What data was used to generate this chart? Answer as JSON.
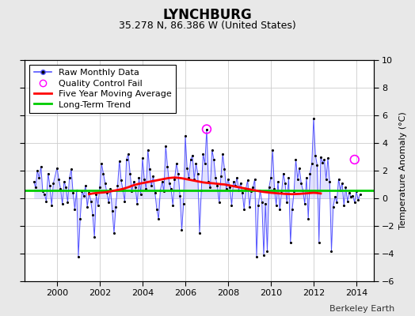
{
  "title": "LYNCHBURG",
  "subtitle": "35.278 N, 86.386 W (United States)",
  "ylabel": "Temperature Anomaly (°C)",
  "watermark": "Berkeley Earth",
  "ylim": [
    -6,
    10
  ],
  "xlim": [
    1998.5,
    2014.8
  ],
  "xticks": [
    2000,
    2002,
    2004,
    2006,
    2008,
    2010,
    2012,
    2014
  ],
  "yticks": [
    -6,
    -4,
    -2,
    0,
    2,
    4,
    6,
    8,
    10
  ],
  "line_color": "#5555ff",
  "marker_color": "#000000",
  "fill_color": "#aaaaff",
  "moving_avg_color": "#ff0000",
  "trend_color": "#00cc00",
  "qc_fail_color": "#ff00ff",
  "background_color": "#e8e8e8",
  "plot_bg_color": "#ffffff",
  "grid_color": "#cccccc",
  "trend_value": 0.6,
  "monthly_data": [
    [
      1998.917,
      1.2
    ],
    [
      1999.0,
      0.8
    ],
    [
      1999.083,
      2.0
    ],
    [
      1999.167,
      1.5
    ],
    [
      1999.25,
      2.3
    ],
    [
      1999.333,
      0.5
    ],
    [
      1999.417,
      0.3
    ],
    [
      1999.5,
      -0.2
    ],
    [
      1999.583,
      1.8
    ],
    [
      1999.667,
      0.9
    ],
    [
      1999.75,
      -0.5
    ],
    [
      1999.833,
      1.1
    ],
    [
      2000.0,
      2.2
    ],
    [
      2000.083,
      1.4
    ],
    [
      2000.167,
      0.7
    ],
    [
      2000.25,
      -0.4
    ],
    [
      2000.333,
      1.2
    ],
    [
      2000.417,
      0.8
    ],
    [
      2000.5,
      -0.3
    ],
    [
      2000.583,
      1.5
    ],
    [
      2000.667,
      2.1
    ],
    [
      2000.75,
      0.4
    ],
    [
      2000.833,
      -0.8
    ],
    [
      2000.917,
      0.6
    ],
    [
      2001.0,
      -4.2
    ],
    [
      2001.083,
      -1.5
    ],
    [
      2001.167,
      0.5
    ],
    [
      2001.25,
      0.2
    ],
    [
      2001.333,
      0.9
    ],
    [
      2001.417,
      -0.6
    ],
    [
      2001.5,
      0.4
    ],
    [
      2001.583,
      -0.2
    ],
    [
      2001.667,
      -1.2
    ],
    [
      2001.75,
      -2.8
    ],
    [
      2001.833,
      0.3
    ],
    [
      2001.917,
      -0.5
    ],
    [
      2002.0,
      0.8
    ],
    [
      2002.083,
      2.5
    ],
    [
      2002.167,
      1.8
    ],
    [
      2002.25,
      1.1
    ],
    [
      2002.333,
      0.4
    ],
    [
      2002.417,
      -0.3
    ],
    [
      2002.5,
      0.7
    ],
    [
      2002.583,
      -0.9
    ],
    [
      2002.667,
      -2.5
    ],
    [
      2002.75,
      -0.6
    ],
    [
      2002.833,
      0.9
    ],
    [
      2002.917,
      2.7
    ],
    [
      2003.0,
      1.3
    ],
    [
      2003.083,
      0.6
    ],
    [
      2003.167,
      -0.2
    ],
    [
      2003.25,
      2.8
    ],
    [
      2003.333,
      3.2
    ],
    [
      2003.417,
      1.8
    ],
    [
      2003.5,
      0.5
    ],
    [
      2003.583,
      1.2
    ],
    [
      2003.667,
      0.8
    ],
    [
      2003.75,
      -0.4
    ],
    [
      2003.833,
      1.5
    ],
    [
      2003.917,
      0.3
    ],
    [
      2004.0,
      2.9
    ],
    [
      2004.083,
      1.4
    ],
    [
      2004.167,
      0.7
    ],
    [
      2004.25,
      3.5
    ],
    [
      2004.333,
      2.1
    ],
    [
      2004.417,
      0.9
    ],
    [
      2004.5,
      1.6
    ],
    [
      2004.583,
      0.4
    ],
    [
      2004.667,
      -0.8
    ],
    [
      2004.75,
      -1.5
    ],
    [
      2004.833,
      0.6
    ],
    [
      2004.917,
      1.2
    ],
    [
      2005.0,
      0.5
    ],
    [
      2005.083,
      3.8
    ],
    [
      2005.167,
      2.3
    ],
    [
      2005.25,
      1.1
    ],
    [
      2005.333,
      0.7
    ],
    [
      2005.417,
      -0.5
    ],
    [
      2005.5,
      1.4
    ],
    [
      2005.583,
      2.5
    ],
    [
      2005.667,
      1.8
    ],
    [
      2005.75,
      0.2
    ],
    [
      2005.833,
      -2.3
    ],
    [
      2005.917,
      -0.4
    ],
    [
      2006.0,
      4.5
    ],
    [
      2006.083,
      2.2
    ],
    [
      2006.167,
      1.5
    ],
    [
      2006.25,
      2.8
    ],
    [
      2006.333,
      3.1
    ],
    [
      2006.417,
      1.4
    ],
    [
      2006.5,
      2.5
    ],
    [
      2006.583,
      1.8
    ],
    [
      2006.667,
      -2.5
    ],
    [
      2006.75,
      0.6
    ],
    [
      2006.833,
      3.2
    ],
    [
      2006.917,
      2.5
    ],
    [
      2007.0,
      5.0
    ],
    [
      2007.083,
      1.2
    ],
    [
      2007.167,
      0.8
    ],
    [
      2007.25,
      3.5
    ],
    [
      2007.333,
      2.8
    ],
    [
      2007.417,
      1.5
    ],
    [
      2007.5,
      0.9
    ],
    [
      2007.583,
      -0.3
    ],
    [
      2007.667,
      1.6
    ],
    [
      2007.75,
      3.2
    ],
    [
      2007.833,
      2.1
    ],
    [
      2007.917,
      0.7
    ],
    [
      2008.0,
      1.4
    ],
    [
      2008.083,
      0.8
    ],
    [
      2008.167,
      -0.5
    ],
    [
      2008.25,
      1.2
    ],
    [
      2008.333,
      0.9
    ],
    [
      2008.417,
      1.5
    ],
    [
      2008.5,
      0.6
    ],
    [
      2008.583,
      1.1
    ],
    [
      2008.667,
      0.4
    ],
    [
      2008.75,
      -0.8
    ],
    [
      2008.833,
      0.7
    ],
    [
      2008.917,
      1.3
    ],
    [
      2009.0,
      -0.6
    ],
    [
      2009.083,
      0.5
    ],
    [
      2009.167,
      0.8
    ],
    [
      2009.25,
      1.4
    ],
    [
      2009.333,
      -4.2
    ],
    [
      2009.417,
      -0.5
    ],
    [
      2009.5,
      0.6
    ],
    [
      2009.583,
      -0.3
    ],
    [
      2009.667,
      -4.1
    ],
    [
      2009.75,
      -0.4
    ],
    [
      2009.833,
      -3.8
    ],
    [
      2009.917,
      0.8
    ],
    [
      2010.0,
      1.5
    ],
    [
      2010.083,
      3.5
    ],
    [
      2010.167,
      0.7
    ],
    [
      2010.25,
      -0.5
    ],
    [
      2010.333,
      1.2
    ],
    [
      2010.417,
      -0.8
    ],
    [
      2010.5,
      0.4
    ],
    [
      2010.583,
      1.8
    ],
    [
      2010.667,
      1.1
    ],
    [
      2010.75,
      -0.3
    ],
    [
      2010.833,
      1.5
    ],
    [
      2010.917,
      -3.2
    ],
    [
      2011.0,
      -0.8
    ],
    [
      2011.083,
      0.5
    ],
    [
      2011.167,
      2.8
    ],
    [
      2011.25,
      1.4
    ],
    [
      2011.333,
      2.2
    ],
    [
      2011.417,
      1.1
    ],
    [
      2011.5,
      0.6
    ],
    [
      2011.583,
      -0.4
    ],
    [
      2011.667,
      1.5
    ],
    [
      2011.75,
      -1.5
    ],
    [
      2011.833,
      1.8
    ],
    [
      2011.917,
      2.5
    ],
    [
      2012.0,
      5.8
    ],
    [
      2012.083,
      3.1
    ],
    [
      2012.167,
      2.4
    ],
    [
      2012.25,
      -3.2
    ],
    [
      2012.333,
      3.0
    ],
    [
      2012.417,
      2.6
    ],
    [
      2012.5,
      2.8
    ],
    [
      2012.583,
      1.4
    ],
    [
      2012.667,
      2.9
    ],
    [
      2012.75,
      1.2
    ],
    [
      2012.833,
      -3.8
    ],
    [
      2012.917,
      -0.6
    ],
    [
      2013.0,
      0.1
    ],
    [
      2013.083,
      -0.3
    ],
    [
      2013.167,
      1.4
    ],
    [
      2013.25,
      0.6
    ],
    [
      2013.333,
      1.1
    ],
    [
      2013.417,
      -0.5
    ],
    [
      2013.5,
      0.8
    ],
    [
      2013.583,
      -0.2
    ],
    [
      2013.667,
      0.4
    ],
    [
      2013.75,
      0.1
    ],
    [
      2013.833,
      0.2
    ],
    [
      2013.917,
      -0.3
    ],
    [
      2014.0,
      0.5
    ],
    [
      2014.083,
      -0.1
    ],
    [
      2014.167,
      0.3
    ]
  ],
  "qc_fail_points": [
    [
      2007.0,
      5.0
    ],
    [
      2013.917,
      2.8
    ]
  ],
  "moving_avg": [
    [
      2001.5,
      0.3
    ],
    [
      2001.667,
      0.35
    ],
    [
      2001.833,
      0.38
    ],
    [
      2002.0,
      0.4
    ],
    [
      2002.167,
      0.42
    ],
    [
      2002.333,
      0.45
    ],
    [
      2002.5,
      0.5
    ],
    [
      2002.667,
      0.55
    ],
    [
      2002.833,
      0.6
    ],
    [
      2003.0,
      0.65
    ],
    [
      2003.167,
      0.72
    ],
    [
      2003.333,
      0.8
    ],
    [
      2003.5,
      0.9
    ],
    [
      2003.667,
      0.98
    ],
    [
      2003.833,
      1.05
    ],
    [
      2004.0,
      1.1
    ],
    [
      2004.167,
      1.15
    ],
    [
      2004.333,
      1.2
    ],
    [
      2004.5,
      1.25
    ],
    [
      2004.667,
      1.3
    ],
    [
      2004.833,
      1.35
    ],
    [
      2005.0,
      1.4
    ],
    [
      2005.167,
      1.45
    ],
    [
      2005.333,
      1.48
    ],
    [
      2005.5,
      1.5
    ],
    [
      2005.667,
      1.48
    ],
    [
      2005.833,
      1.45
    ],
    [
      2006.0,
      1.4
    ],
    [
      2006.167,
      1.35
    ],
    [
      2006.333,
      1.3
    ],
    [
      2006.5,
      1.25
    ],
    [
      2006.667,
      1.2
    ],
    [
      2006.833,
      1.15
    ],
    [
      2007.0,
      1.12
    ],
    [
      2007.167,
      1.1
    ],
    [
      2007.333,
      1.08
    ],
    [
      2007.5,
      1.05
    ],
    [
      2007.667,
      1.02
    ],
    [
      2007.833,
      1.0
    ],
    [
      2008.0,
      0.95
    ],
    [
      2008.167,
      0.9
    ],
    [
      2008.333,
      0.85
    ],
    [
      2008.5,
      0.8
    ],
    [
      2008.667,
      0.75
    ],
    [
      2008.833,
      0.7
    ],
    [
      2009.0,
      0.65
    ],
    [
      2009.167,
      0.6
    ],
    [
      2009.333,
      0.55
    ],
    [
      2009.5,
      0.5
    ],
    [
      2009.667,
      0.46
    ],
    [
      2009.833,
      0.43
    ],
    [
      2010.0,
      0.4
    ],
    [
      2010.167,
      0.38
    ],
    [
      2010.333,
      0.36
    ],
    [
      2010.5,
      0.34
    ],
    [
      2010.667,
      0.32
    ],
    [
      2010.833,
      0.31
    ],
    [
      2011.0,
      0.3
    ],
    [
      2011.167,
      0.31
    ],
    [
      2011.333,
      0.32
    ],
    [
      2011.5,
      0.34
    ],
    [
      2011.667,
      0.36
    ],
    [
      2011.833,
      0.38
    ],
    [
      2012.0,
      0.4
    ],
    [
      2012.167,
      0.38
    ],
    [
      2012.333,
      0.35
    ]
  ],
  "title_fontsize": 12,
  "subtitle_fontsize": 9,
  "axis_fontsize": 8,
  "legend_fontsize": 8,
  "watermark_fontsize": 8
}
